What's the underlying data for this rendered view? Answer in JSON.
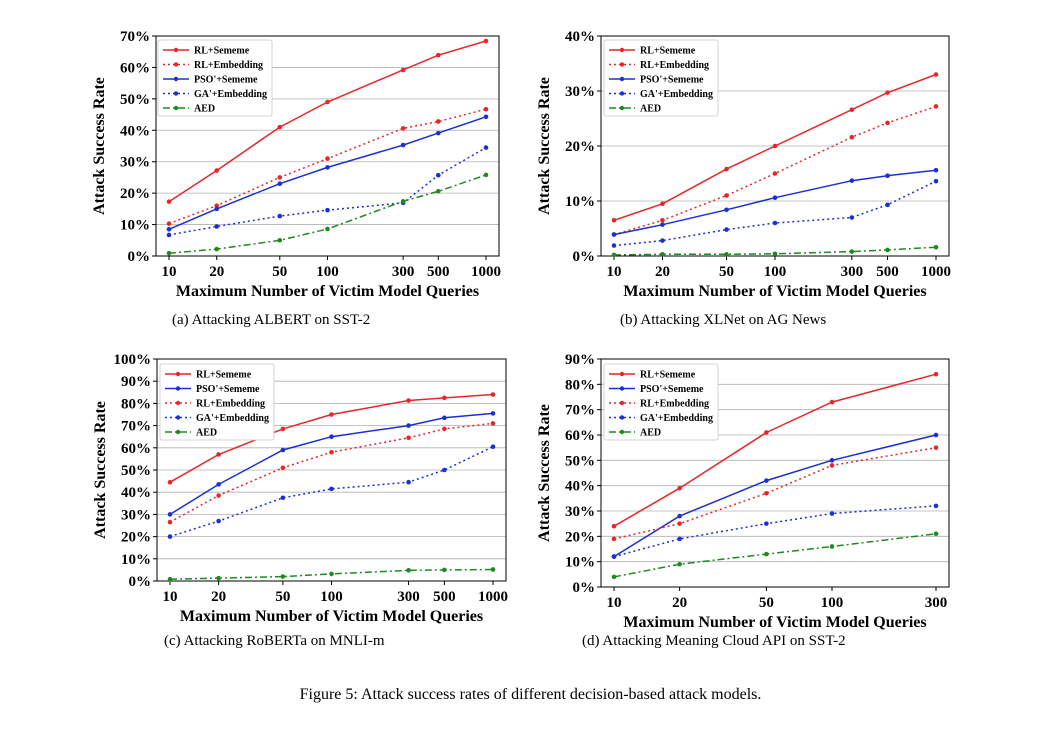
{
  "figure_caption": "Figure 5: Attack success rates of different decision-based attack models.",
  "chart_data": [
    {
      "type": "line",
      "panel": "a",
      "caption": "(a)  Attacking ALBERT on SST-2",
      "xlabel": "Maximum Number of Victim Model Queries",
      "ylabel": "Attack Success Rate",
      "x_scale": "log",
      "x": [
        10,
        20,
        50,
        100,
        300,
        500,
        1000
      ],
      "x_tick_labels": [
        "10",
        "20",
        "50",
        "100",
        "300",
        "500",
        "1000"
      ],
      "ylim": [
        0,
        70
      ],
      "y_ticks": [
        0,
        10,
        20,
        30,
        40,
        50,
        60,
        70
      ],
      "y_tick_labels": [
        "0%",
        "10%",
        "20%",
        "30%",
        "40%",
        "50%",
        "60%",
        "70%"
      ],
      "grid": "horizontal",
      "legend_position": "top-left",
      "series": [
        {
          "name": "RL+Sememe",
          "color": "#e8262a",
          "style": "solid",
          "values": [
            17.3,
            27.2,
            41,
            49,
            59.2,
            63.9,
            68.4
          ]
        },
        {
          "name": "RL+Embedding",
          "color": "#e8262a",
          "style": "dotted",
          "values": [
            10.3,
            16,
            25,
            31,
            40.6,
            42.8,
            46.7
          ]
        },
        {
          "name": "PSO'+Sememe",
          "color": "#1a2fd6",
          "style": "solid",
          "values": [
            8.5,
            15,
            23,
            28.2,
            35.3,
            39.1,
            44.3
          ]
        },
        {
          "name": "GA'+Embedding",
          "color": "#1a2fd6",
          "style": "dotted",
          "values": [
            6.7,
            9.4,
            12.7,
            14.6,
            16.9,
            25.7,
            34.5
          ]
        },
        {
          "name": "AED",
          "color": "#1f8a1f",
          "style": "dashdot",
          "values": [
            0.9,
            2.2,
            5,
            8.6,
            17.4,
            20.6,
            25.8
          ]
        }
      ]
    },
    {
      "type": "line",
      "panel": "b",
      "caption": "(b)  Attacking XLNet on AG News",
      "xlabel": "Maximum Number of Victim Model Queries",
      "ylabel": "Attack Success Rate",
      "x_scale": "log",
      "x": [
        10,
        20,
        50,
        100,
        300,
        500,
        1000
      ],
      "x_tick_labels": [
        "10",
        "20",
        "50",
        "100",
        "300",
        "500",
        "1000"
      ],
      "ylim": [
        0,
        40
      ],
      "y_ticks": [
        0,
        10,
        20,
        30,
        40
      ],
      "y_tick_labels": [
        "0%",
        "10%",
        "20%",
        "30%",
        "40%"
      ],
      "grid": "horizontal",
      "legend_position": "top-left",
      "series": [
        {
          "name": "RL+Sememe",
          "color": "#e8262a",
          "style": "solid",
          "values": [
            6.5,
            9.5,
            15.8,
            20,
            26.6,
            29.7,
            33
          ]
        },
        {
          "name": "RL+Embedding",
          "color": "#e8262a",
          "style": "dotted",
          "values": [
            3.9,
            6.5,
            11,
            15,
            21.6,
            24.2,
            27.2
          ]
        },
        {
          "name": "PSO'+Sememe",
          "color": "#1a2fd6",
          "style": "solid",
          "values": [
            3.9,
            5.7,
            8.4,
            10.6,
            13.7,
            14.6,
            15.6
          ]
        },
        {
          "name": "GA'+Embedding",
          "color": "#1a2fd6",
          "style": "dotted",
          "values": [
            1.9,
            2.8,
            4.8,
            6,
            7,
            9.3,
            13.6
          ]
        },
        {
          "name": "AED",
          "color": "#1f8a1f",
          "style": "dashdot",
          "values": [
            0.2,
            0.3,
            0.3,
            0.4,
            0.8,
            1.1,
            1.6
          ]
        }
      ]
    },
    {
      "type": "line",
      "panel": "c",
      "caption": "(c)  Attacking RoBERTa on MNLI-m",
      "xlabel": "Maximum Number of Victim Model Queries",
      "ylabel": "Attack Success Rate",
      "x_scale": "log",
      "x": [
        10,
        20,
        50,
        100,
        300,
        500,
        1000
      ],
      "x_tick_labels": [
        "10",
        "20",
        "50",
        "100",
        "300",
        "500",
        "1000"
      ],
      "ylim": [
        0,
        100
      ],
      "y_ticks": [
        0,
        10,
        20,
        30,
        40,
        50,
        60,
        70,
        80,
        90,
        100
      ],
      "y_tick_labels": [
        "0%",
        "10%",
        "20%",
        "30%",
        "40%",
        "50%",
        "60%",
        "70%",
        "80%",
        "90%",
        "100%"
      ],
      "grid": "horizontal",
      "legend_position": "top-left",
      "series": [
        {
          "name": "RL+Sememe",
          "color": "#e8262a",
          "style": "solid",
          "values": [
            44.5,
            57,
            68.5,
            75,
            81.3,
            82.5,
            84
          ]
        },
        {
          "name": "PSO'+Sememe",
          "color": "#1a2fd6",
          "style": "solid",
          "values": [
            30,
            43.5,
            59,
            65,
            70,
            73.5,
            75.5
          ]
        },
        {
          "name": "RL+Embedding",
          "color": "#e8262a",
          "style": "dotted",
          "values": [
            26.5,
            38.5,
            51,
            58,
            64.5,
            68.5,
            71
          ]
        },
        {
          "name": "GA'+Embedding",
          "color": "#1a2fd6",
          "style": "dotted",
          "values": [
            20,
            27,
            37.5,
            41.5,
            44.5,
            50,
            60.5
          ]
        },
        {
          "name": "AED",
          "color": "#1f8a1f",
          "style": "dashdot",
          "values": [
            0.8,
            1.3,
            2,
            3.2,
            4.8,
            5,
            5.2
          ]
        }
      ]
    },
    {
      "type": "line",
      "panel": "d",
      "caption": "(d)  Attacking Meaning Cloud API on SST-2",
      "xlabel": "Maximum Number of Victim Model Queries",
      "ylabel": "Attack Success Rate",
      "x_scale": "log",
      "x": [
        10,
        20,
        50,
        100,
        300
      ],
      "x_tick_labels": [
        "10",
        "20",
        "50",
        "100",
        "300"
      ],
      "ylim": [
        0,
        90
      ],
      "y_ticks": [
        0,
        10,
        20,
        30,
        40,
        50,
        60,
        70,
        80,
        90
      ],
      "y_tick_labels": [
        "0%",
        "10%",
        "20%",
        "30%",
        "40%",
        "50%",
        "60%",
        "70%",
        "80%",
        "90%"
      ],
      "grid": "horizontal",
      "legend_position": "top-left",
      "series": [
        {
          "name": "RL+Sememe",
          "color": "#e8262a",
          "style": "solid",
          "values": [
            24,
            39,
            61,
            73,
            84
          ]
        },
        {
          "name": "PSO'+Sememe",
          "color": "#1a2fd6",
          "style": "solid",
          "values": [
            12,
            28,
            42,
            50,
            60
          ]
        },
        {
          "name": "RL+Embedding",
          "color": "#e8262a",
          "style": "dotted",
          "values": [
            19,
            25,
            37,
            48,
            55
          ]
        },
        {
          "name": "GA'+Embedding",
          "color": "#1a2fd6",
          "style": "dotted",
          "values": [
            12,
            19,
            25,
            29,
            32
          ]
        },
        {
          "name": "AED",
          "color": "#1f8a1f",
          "style": "dashdot",
          "values": [
            4,
            9,
            13,
            16,
            21
          ]
        }
      ]
    }
  ]
}
